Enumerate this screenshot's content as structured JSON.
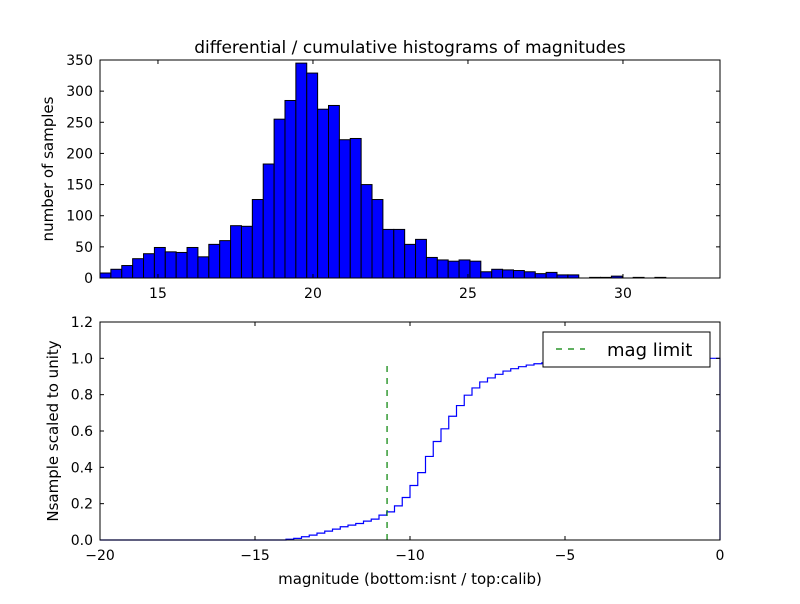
{
  "chart_data": [
    {
      "type": "bar",
      "title": "differential / cumulative histograms of magnitudes",
      "xlabel": "",
      "ylabel": "number of samples",
      "xlim": [
        13.13,
        33.13
      ],
      "ylim": [
        0,
        350
      ],
      "xticks": [
        15,
        20,
        25,
        30
      ],
      "xtick_labels": [
        "15",
        "20",
        "25",
        "30"
      ],
      "yticks": [
        0,
        50,
        100,
        150,
        200,
        250,
        300,
        350
      ],
      "ytick_labels": [
        "0",
        "50",
        "100",
        "150",
        "200",
        "250",
        "300",
        "350"
      ],
      "bin_start": 13.13,
      "bin_width": 0.351,
      "bar_color": "#0000ff",
      "values": [
        8,
        14,
        20,
        31,
        39,
        49,
        42,
        41,
        49,
        34,
        54,
        60,
        84,
        83,
        126,
        183,
        255,
        285,
        345,
        329,
        271,
        277,
        222,
        224,
        150,
        126,
        78,
        78,
        54,
        62,
        33,
        29,
        27,
        29,
        27,
        10,
        14,
        13,
        12,
        10,
        7,
        9,
        5,
        5,
        0,
        1,
        1,
        3,
        0,
        1,
        0,
        1,
        0,
        0,
        0,
        0,
        0
      ]
    },
    {
      "type": "line",
      "drawstyle": "steps",
      "xlabel": "magnitude (bottom:isnt / top:calib)",
      "ylabel": "Nsample scaled to unity",
      "xlim": [
        -20,
        0
      ],
      "ylim": [
        0,
        1.2
      ],
      "xticks": [
        -20,
        -15,
        -10,
        -5,
        0
      ],
      "xtick_labels": [
        "−20",
        "−15",
        "−10",
        "−5",
        "0"
      ],
      "yticks": [
        0,
        0.2,
        0.4,
        0.6,
        0.8,
        1.0,
        1.2
      ],
      "ytick_labels": [
        "0.0",
        "0.2",
        "0.4",
        "0.6",
        "0.8",
        "1.0",
        "1.2"
      ],
      "step_start": -14.0,
      "step_width": 0.25,
      "line_color": "#0000ff",
      "values": [
        0.004,
        0.009,
        0.018,
        0.027,
        0.038,
        0.049,
        0.06,
        0.073,
        0.082,
        0.091,
        0.104,
        0.115,
        0.137,
        0.155,
        0.188,
        0.234,
        0.3,
        0.371,
        0.46,
        0.542,
        0.612,
        0.681,
        0.74,
        0.797,
        0.837,
        0.87,
        0.892,
        0.912,
        0.93,
        0.943,
        0.954,
        0.963,
        0.97,
        0.975,
        0.98,
        0.984,
        0.987,
        0.99,
        0.992,
        0.994,
        0.995,
        0.996,
        0.997,
        0.998,
        0.998,
        0.999,
        0.999,
        0.999,
        1.0,
        1.0,
        1.0,
        1.0,
        1.0,
        1.0,
        1.0,
        1.0
      ],
      "mag_limit": -10.74,
      "mag_limit_top": 0.97,
      "mag_limit_color": "#008000",
      "legend": {
        "entries": [
          "mag limit"
        ],
        "placement": "top-right"
      }
    }
  ]
}
